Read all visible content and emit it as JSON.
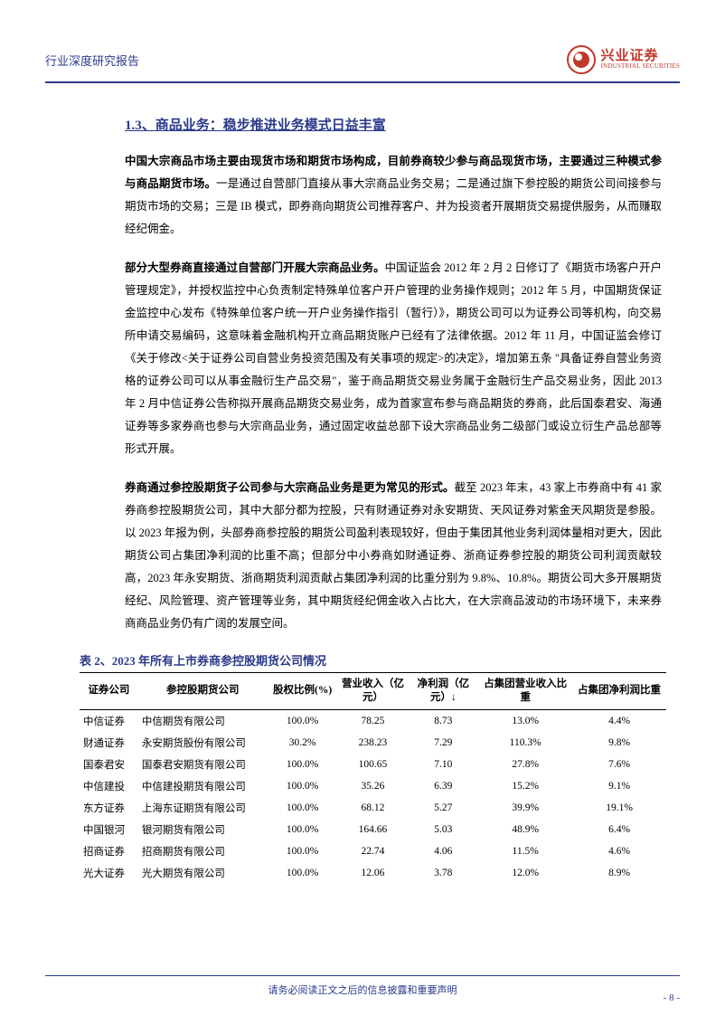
{
  "header": {
    "left": "行业深度研究报告",
    "logo_ch": "兴业证券",
    "logo_en": "INDUSTRIAL SECURITIES"
  },
  "section_title": "1.3、商品业务：稳步推进业务模式日益丰富",
  "para1_bold": "中国大宗商品市场主要由现货市场和期货市场构成，目前券商较少参与商品现货市场，主要通过三种模式参与商品期货市场。",
  "para1_rest": "一是通过自营部门直接从事大宗商品业务交易；二是通过旗下参控股的期货公司间接参与期货市场的交易；三是 IB 模式，即券商向期货公司推荐客户、并为投资者开展期货交易提供服务，从而赚取经纪佣金。",
  "para2_bold": "部分大型券商直接通过自营部门开展大宗商品业务。",
  "para2_rest": "中国证监会 2012 年 2 月 2 日修订了《期货市场客户开户管理规定》，并授权监控中心负责制定特殊单位客户开户管理的业务操作规则；2012 年 5 月，中国期货保证金监控中心发布《特殊单位客户统一开户业务操作指引（暂行）》，期货公司可以为证券公司等机构，向交易所申请交易编码，这意味着金融机构开立商品期货账户已经有了法律依据。2012 年 11 月，中国证监会修订《关于修改<关于证券公司自营业务投资范围及有关事项的规定>的决定》，增加第五条 \"具备证券自营业务资格的证券公司可以从事金融衍生产品交易\"，鉴于商品期货交易业务属于金融衍生产品交易业务，因此 2013 年 2 月中信证券公告称拟开展商品期货交易业务，成为首家宣布参与商品期货的券商，此后国泰君安、海通证券等多家券商也参与大宗商品业务，通过固定收益总部下设大宗商品业务二级部门或设立衍生产品总部等形式开展。",
  "para3_bold": "券商通过参控股期货子公司参与大宗商品业务是更为常见的形式。",
  "para3_rest": "截至 2023 年末，43 家上市券商中有 41 家券商参控股期货公司，其中大部分都为控股，只有财通证券对永安期货、天风证券对紫金天风期货是参股。以 2023 年报为例，头部券商参控股的期货公司盈利表现较好，但由于集团其他业务利润体量相对更大，因此期货公司占集团净利润的比重不高；但部分中小券商如财通证券、浙商证券参控股的期货公司利润贡献较高，2023 年永安期货、浙商期货利润贡献占集团净利润的比重分别为 9.8%、10.8%。期货公司大多开展期货经纪、风险管理、资产管理等业务，其中期货经纪佣金收入占比大，在大宗商品波动的市场环境下，未来券商商品业务仍有广阔的发展空间。",
  "table": {
    "caption": "表 2、2023 年所有上市券商参控股期货公司情况",
    "columns": [
      "证券公司",
      "参控股期货公司",
      "股权比例(%)",
      "营业收入（亿元）",
      "净利润（亿元）↓",
      "占集团营业收入比重",
      "占集团净利润比重"
    ],
    "rows": [
      [
        "中信证券",
        "中信期货有限公司",
        "100.0%",
        "78.25",
        "8.73",
        "13.0%",
        "4.4%"
      ],
      [
        "财通证券",
        "永安期货股份有限公司",
        "30.2%",
        "238.23",
        "7.29",
        "110.3%",
        "9.8%"
      ],
      [
        "国泰君安",
        "国泰君安期货有限公司",
        "100.0%",
        "100.65",
        "7.10",
        "27.8%",
        "7.6%"
      ],
      [
        "中信建投",
        "中信建投期货有限公司",
        "100.0%",
        "35.26",
        "6.39",
        "15.2%",
        "9.1%"
      ],
      [
        "东方证券",
        "上海东证期货有限公司",
        "100.0%",
        "68.12",
        "5.27",
        "39.9%",
        "19.1%"
      ],
      [
        "中国银河",
        "银河期货有限公司",
        "100.0%",
        "164.66",
        "5.03",
        "48.9%",
        "6.4%"
      ],
      [
        "招商证券",
        "招商期货有限公司",
        "100.0%",
        "22.74",
        "4.06",
        "11.5%",
        "4.6%"
      ],
      [
        "光大证券",
        "光大期货有限公司",
        "100.0%",
        "12.06",
        "3.78",
        "12.0%",
        "8.9%"
      ]
    ]
  },
  "footer": {
    "text": "请务必阅读正文之后的信息披露和重要声明",
    "page": "- 8 -"
  },
  "colors": {
    "brand_blue": "#2b3a8a",
    "brand_red": "#c0392b"
  }
}
